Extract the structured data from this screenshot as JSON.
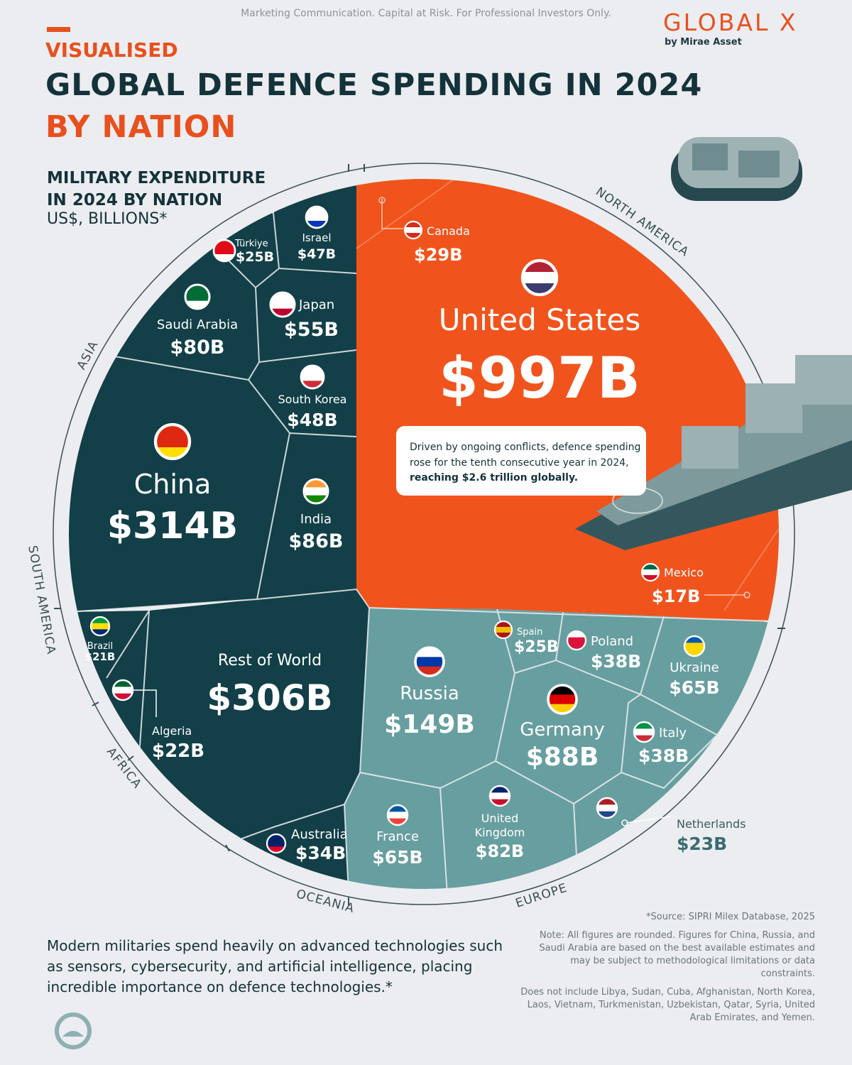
{
  "header": {
    "disclaimer": "Marketing Communication. Capital at Risk. For Professional Investors Only.",
    "logo_name": "GLOBAL X",
    "logo_sub": "by Mirae Asset",
    "kicker": "VISUALISED",
    "title_line1": "GLOBAL DEFENCE SPENDING IN 2024",
    "title_line2": "BY NATION",
    "subtitle": "MILITARY EXPENDITURE IN 2024 BY NATION",
    "unit": "US$, BILLIONS*"
  },
  "chart_data": {
    "type": "voronoi-treemap",
    "title": "MILITARY EXPENDITURE IN 2024 BY NATION",
    "unit": "US$, BILLIONS*",
    "regions": [
      "NORTH AMERICA",
      "ASIA",
      "SOUTH AMERICA",
      "AFRICA",
      "OCEANIA",
      "EUROPE"
    ],
    "region_colors": {
      "NORTH AMERICA": "#f0541c",
      "ASIA": "#123f48",
      "SOUTH AMERICA": "#123f48",
      "AFRICA": "#123f48",
      "OCEANIA": "#123f48",
      "EUROPE": "#679ea0"
    },
    "cells": [
      {
        "name": "United States",
        "label": "$997B",
        "value": 997,
        "region": "NORTH AMERICA"
      },
      {
        "name": "Canada",
        "label": "$29B",
        "value": 29,
        "region": "NORTH AMERICA"
      },
      {
        "name": "Mexico",
        "label": "$17B",
        "value": 17,
        "region": "NORTH AMERICA"
      },
      {
        "name": "China",
        "label": "$314B",
        "value": 314,
        "region": "ASIA"
      },
      {
        "name": "India",
        "label": "$86B",
        "value": 86,
        "region": "ASIA"
      },
      {
        "name": "Saudi Arabia",
        "label": "$80B",
        "value": 80,
        "region": "ASIA"
      },
      {
        "name": "Japan",
        "label": "$55B",
        "value": 55,
        "region": "ASIA"
      },
      {
        "name": "South Korea",
        "label": "$48B",
        "value": 48,
        "region": "ASIA"
      },
      {
        "name": "Israel",
        "label": "$47B",
        "value": 47,
        "region": "ASIA"
      },
      {
        "name": "Türkiye",
        "label": "$25B",
        "value": 25,
        "region": "ASIA"
      },
      {
        "name": "Rest of World",
        "label": "$306B",
        "value": 306,
        "region": "OTHER"
      },
      {
        "name": "Brazil",
        "label": "$21B",
        "value": 21,
        "region": "SOUTH AMERICA"
      },
      {
        "name": "Algeria",
        "label": "$22B",
        "value": 22,
        "region": "AFRICA"
      },
      {
        "name": "Australia",
        "label": "$34B",
        "value": 34,
        "region": "OCEANIA"
      },
      {
        "name": "Russia",
        "label": "$149B",
        "value": 149,
        "region": "EUROPE"
      },
      {
        "name": "Germany",
        "label": "$88B",
        "value": 88,
        "region": "EUROPE"
      },
      {
        "name": "United Kingdom",
        "label": "$82B",
        "value": 82,
        "region": "EUROPE"
      },
      {
        "name": "France",
        "label": "$65B",
        "value": 65,
        "region": "EUROPE"
      },
      {
        "name": "Ukraine",
        "label": "$65B",
        "value": 65,
        "region": "EUROPE"
      },
      {
        "name": "Poland",
        "label": "$38B",
        "value": 38,
        "region": "EUROPE"
      },
      {
        "name": "Italy",
        "label": "$38B",
        "value": 38,
        "region": "EUROPE"
      },
      {
        "name": "Spain",
        "label": "$25B",
        "value": 25,
        "region": "EUROPE"
      },
      {
        "name": "Netherlands",
        "label": "$23B",
        "value": 23,
        "region": "EUROPE"
      }
    ],
    "annotation": "Driven by ongoing conflicts, defence spending rose for the tenth consecutive year in 2024,",
    "annotation_bold": "reaching $2.6 trillion globally."
  },
  "footer": {
    "footnote": "Modern militaries spend heavily on advanced technologies such as sensors, cybersecurity, and artificial intelligence, placing incredible importance on defence technologies.*",
    "source": "*Source: SIPRI Milex Database, 2025",
    "note1": "Note: All figures are rounded. Figures for China, Russia, and Saudi Arabia are based on the best available estimates and may be subject to methodological limitations or data constraints.",
    "note2": "Does not include Libya, Sudan, Cuba, Afghanistan, North Korea, Laos, Vietnam, Turkmenistan, Uzbekistan, Qatar, Syria, United Arab Emirates, and Yemen."
  }
}
